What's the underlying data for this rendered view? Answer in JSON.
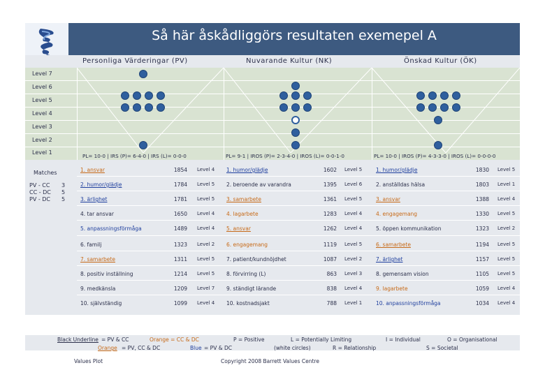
{
  "title": "Så här åskådliggörs resultaten exemepel A",
  "columns": {
    "pv": "Personliga Värderingar (PV)",
    "nk": "Nuvarande Kultur (NK)",
    "ok": "Önskad Kultur (ÖK)"
  },
  "levels": [
    "Level 7",
    "Level 6",
    "Level 5",
    "Level 4",
    "Level 3",
    "Level 2",
    "Level 1"
  ],
  "summaries": {
    "pv": "PL= 10-0 | IRS (P)= 6-4-0 | IRS (L)= 0-0-0",
    "nk": "PL= 9-1 | IROS (P)= 2-3-4-0 | IROS (L)= 0-0-1-0",
    "ok": "PL= 10-0 | IROS (P)= 4-3-3-0 | IROS (L)= 0-0-0-0"
  },
  "matches": {
    "label": "Matches",
    "rows": [
      {
        "label": "PV - CC",
        "count": "3"
      },
      {
        "label": "CC - DC",
        "count": "5"
      },
      {
        "label": "PV - DC",
        "count": "5"
      }
    ]
  },
  "pv_values": [
    {
      "name": "1. ansvar",
      "score": "1854",
      "level": "Level 4",
      "style": "u o"
    },
    {
      "name": "2. humor/glädje",
      "score": "1784",
      "level": "Level 5",
      "style": "u b"
    },
    {
      "name": "3. ärlighet",
      "score": "1781",
      "level": "Level 5",
      "style": "u b"
    },
    {
      "name": "4. tar ansvar",
      "score": "1650",
      "level": "Level 4",
      "style": ""
    },
    {
      "name": "5. anpassningsförmåga",
      "score": "1489",
      "level": "Level 4",
      "style": "b"
    },
    {
      "name": "6. familj",
      "score": "1323",
      "level": "Level 2",
      "style": ""
    },
    {
      "name": "7. samarbete",
      "score": "1311",
      "level": "Level 5",
      "style": "u o"
    },
    {
      "name": "8. positiv inställning",
      "score": "1214",
      "level": "Level 5",
      "style": ""
    },
    {
      "name": "9. medkänsla",
      "score": "1209",
      "level": "Level 7",
      "style": ""
    },
    {
      "name": "10. självständig",
      "score": "1099",
      "level": "Level 4",
      "style": ""
    }
  ],
  "nk_values": [
    {
      "name": "1. humor/glädje",
      "score": "1602",
      "level": "Level 5",
      "style": "u b"
    },
    {
      "name": "2. beroende av varandra",
      "score": "1395",
      "level": "Level 6",
      "style": ""
    },
    {
      "name": "3. samarbete",
      "score": "1361",
      "level": "Level 5",
      "style": "u o"
    },
    {
      "name": "4. lagarbete",
      "score": "1283",
      "level": "Level 4",
      "style": "o"
    },
    {
      "name": "5. ansvar",
      "score": "1262",
      "level": "Level 4",
      "style": "u o"
    },
    {
      "name": "6. engagemang",
      "score": "1119",
      "level": "Level 5",
      "style": "o"
    },
    {
      "name": "7. patient/kundnöjdhet",
      "score": "1087",
      "level": "Level 2",
      "style": ""
    },
    {
      "name": "8. förvirring (L)",
      "score": "863",
      "level": "Level 3",
      "style": ""
    },
    {
      "name": "9. ständigt lärande",
      "score": "838",
      "level": "Level 4",
      "style": ""
    },
    {
      "name": "10. kostnadsjakt",
      "score": "788",
      "level": "Level 1",
      "style": ""
    }
  ],
  "ok_values": [
    {
      "name": "1. humor/glädje",
      "score": "1830",
      "level": "Level 5",
      "style": "u b"
    },
    {
      "name": "2. anställdas hälsa",
      "score": "1803",
      "level": "Level 1",
      "style": ""
    },
    {
      "name": "3. ansvar",
      "score": "1388",
      "level": "Level 4",
      "style": "u o"
    },
    {
      "name": "4. engagemang",
      "score": "1330",
      "level": "Level 5",
      "style": "o"
    },
    {
      "name": "5. öppen kommunikation",
      "score": "1323",
      "level": "Level 2",
      "style": ""
    },
    {
      "name": "6. samarbete",
      "score": "1194",
      "level": "Level 5",
      "style": "u o"
    },
    {
      "name": "7. ärlighet",
      "score": "1157",
      "level": "Level 5",
      "style": "u b"
    },
    {
      "name": "8. gemensam vision",
      "score": "1105",
      "level": "Level 5",
      "style": ""
    },
    {
      "name": "9. lagarbete",
      "score": "1059",
      "level": "Level 4",
      "style": "o"
    },
    {
      "name": "10. anpassningsförmåga",
      "score": "1034",
      "level": "Level 4",
      "style": "b"
    }
  ],
  "legend": {
    "black_underline": "Black Underline",
    "black_underline_rest": " = PV & CC",
    "orange_cc_dc": "Orange = CC & DC",
    "orange_underline": "Orange",
    "orange_underline_rest": " = PV, CC & DC",
    "blue": "Blue",
    "blue_rest": " = PV & DC",
    "p_positive": "P = Positive",
    "l_potential": "L = Potentially Limiting",
    "white_circles": "(white circles)",
    "r_relationship": "R = Relationship",
    "i_individual": "I = Individual",
    "o_organisational": "O = Organisational",
    "s_societal": "S = Societal"
  },
  "footer": {
    "left": "Values Plot",
    "center": "Copyright 2008 Barrett Values Centre"
  },
  "colors": {
    "header": "#3d5a80",
    "dot": "#2f5f9e",
    "grid": "#d9e3d2",
    "panel": "#e6e9ee",
    "orange": "#c76a18",
    "blue": "#1f3f9e"
  }
}
